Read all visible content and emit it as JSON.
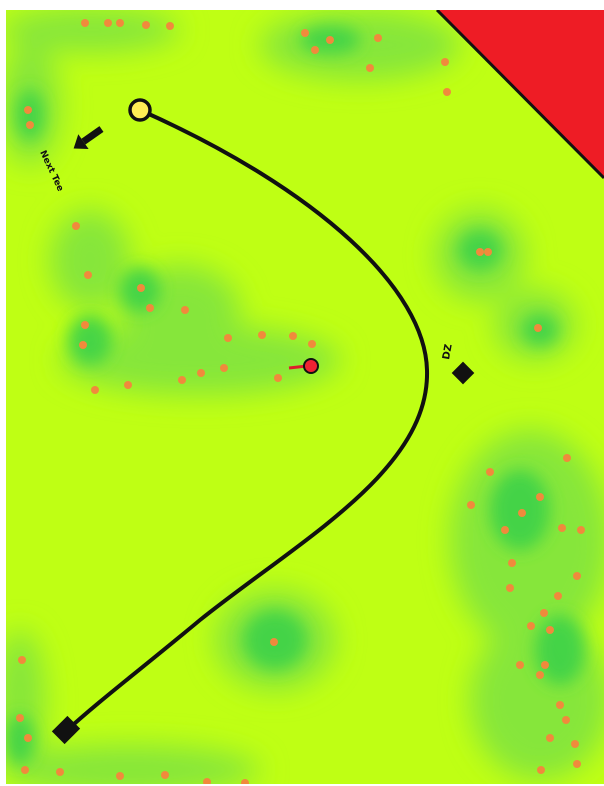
{
  "map": {
    "colors": {
      "fairway": "#bfff14",
      "rough_dark": "#3ed24a",
      "rough_mid": "#86e63a",
      "tree": "#f08a3c",
      "out_of_bounds": "#ee1c25",
      "flight_path": "#111111",
      "tee_marker_fill": "#ffee55",
      "target_marker_fill": "#ee2233",
      "arrow": "#111111"
    },
    "labels": {
      "next_tee": "Next Tee",
      "drop_zone": "DZ"
    },
    "icons": {
      "tee": "circle-marker-icon",
      "target": "pin-marker-icon",
      "drop_zone": "square-marker-icon",
      "start": "square-marker-icon",
      "next_tee_direction": "arrow-icon"
    }
  }
}
